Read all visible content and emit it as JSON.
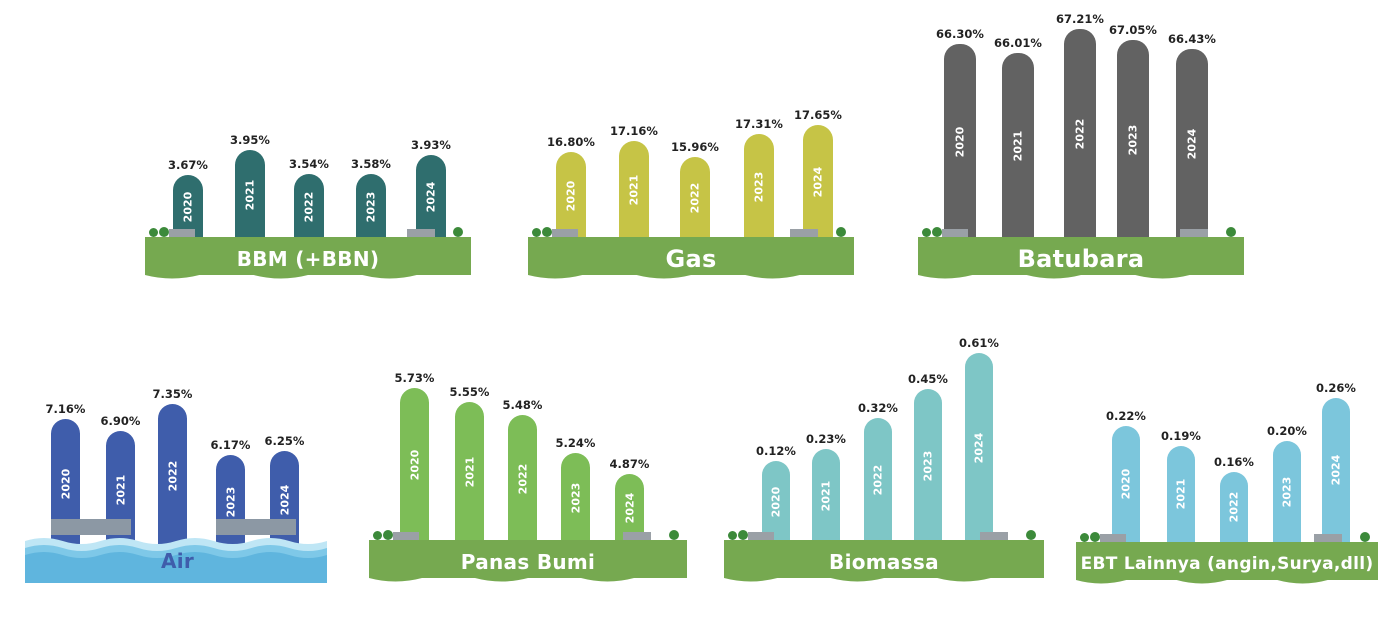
{
  "chart_data": [
    {
      "type": "bar",
      "label": "BBM (+BBN)",
      "categories": [
        "2020",
        "2021",
        "2022",
        "2023",
        "2024"
      ],
      "values": [
        3.67,
        3.95,
        3.54,
        3.58,
        3.93
      ],
      "value_labels": [
        "3.67%",
        "3.95%",
        "3.54%",
        "3.58%",
        "3.93%"
      ],
      "color": "#2f6e6e"
    },
    {
      "type": "bar",
      "label": "Gas",
      "categories": [
        "2020",
        "2021",
        "2022",
        "2023",
        "2024"
      ],
      "values": [
        16.8,
        17.16,
        15.96,
        17.31,
        17.65
      ],
      "value_labels": [
        "16.80%",
        "17.16%",
        "15.96%",
        "17.31%",
        "17.65%"
      ],
      "color": "#c6c446"
    },
    {
      "type": "bar",
      "label": "Batubara",
      "categories": [
        "2020",
        "2021",
        "2022",
        "2023",
        "2024"
      ],
      "values": [
        66.3,
        66.01,
        67.21,
        67.05,
        66.43
      ],
      "value_labels": [
        "66.30%",
        "66.01%",
        "67.21%",
        "67.05%",
        "66.43%"
      ],
      "color": "#626262"
    },
    {
      "type": "bar",
      "label": "Air",
      "categories": [
        "2020",
        "2021",
        "2022",
        "2023",
        "2024"
      ],
      "values": [
        7.16,
        6.9,
        7.35,
        6.17,
        6.25
      ],
      "value_labels": [
        "7.16%",
        "6.90%",
        "7.35%",
        "6.17%",
        "6.25%"
      ],
      "color": "#3f5dab"
    },
    {
      "type": "bar",
      "label": "Panas Bumi",
      "categories": [
        "2020",
        "2021",
        "2022",
        "2023",
        "2024"
      ],
      "values": [
        5.73,
        5.55,
        5.48,
        5.24,
        4.87
      ],
      "value_labels": [
        "5.73%",
        "5.55%",
        "5.48%",
        "5.24%",
        "4.87%"
      ],
      "color": "#7dbd57"
    },
    {
      "type": "bar",
      "label": "Biomassa",
      "categories": [
        "2020",
        "2021",
        "2022",
        "2023",
        "2024"
      ],
      "values": [
        0.12,
        0.23,
        0.32,
        0.45,
        0.61
      ],
      "value_labels": [
        "0.12%",
        "0.23%",
        "0.32%",
        "0.45%",
        "0.61%"
      ],
      "color": "#7ec6c6"
    },
    {
      "type": "bar",
      "label": "EBT Lainnya (angin,Surya,dll)",
      "categories": [
        "2020",
        "2021",
        "2022",
        "2023",
        "2024"
      ],
      "values": [
        0.22,
        0.19,
        0.16,
        0.2,
        0.26
      ],
      "value_labels": [
        "0.22%",
        "0.19%",
        "0.16%",
        "0.20%",
        "0.26%"
      ],
      "color": "#7cc6dc"
    }
  ],
  "ground_color": "#76a950",
  "water_color": "#7ec8e8"
}
